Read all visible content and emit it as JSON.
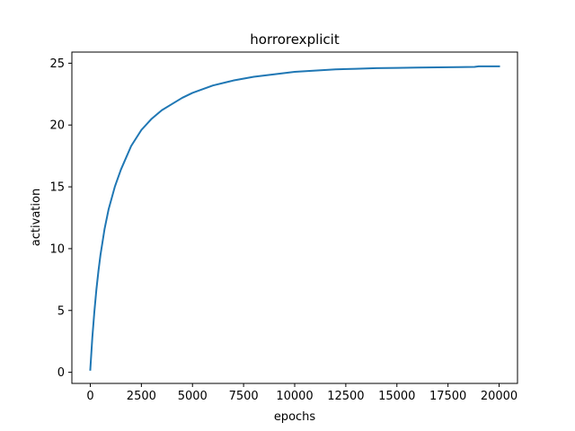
{
  "chart_data": {
    "type": "line",
    "title": "horrorexplicit",
    "xlabel": "epochs",
    "ylabel": "activation",
    "xlim": [
      -900,
      20900
    ],
    "ylim": [
      -0.9,
      25.9
    ],
    "xticks": [
      0,
      2500,
      5000,
      7500,
      10000,
      12500,
      15000,
      17500,
      20000
    ],
    "xtick_labels": [
      "0",
      "2500",
      "5000",
      "7500",
      "10000",
      "12500",
      "15000",
      "17500",
      "20000"
    ],
    "yticks": [
      0,
      5,
      10,
      15,
      20,
      25
    ],
    "ytick_labels": [
      "0",
      "5",
      "10",
      "15",
      "20",
      "25"
    ],
    "grid": false,
    "legend": "none",
    "series": [
      {
        "color": "#1f77b4",
        "x": [
          0,
          100,
          200,
          300,
          400,
          500,
          700,
          900,
          1200,
          1500,
          2000,
          2500,
          3000,
          3500,
          4000,
          4500,
          5000,
          5500,
          6000,
          7000,
          8000,
          9000,
          10000,
          11000,
          12000,
          13000,
          14000,
          15000,
          16000,
          17000,
          18000,
          18800,
          19000,
          20000
        ],
        "y": [
          0.2,
          2.8,
          4.9,
          6.7,
          8.2,
          9.5,
          11.6,
          13.2,
          15.0,
          16.4,
          18.3,
          19.6,
          20.5,
          21.2,
          21.7,
          22.2,
          22.6,
          22.9,
          23.2,
          23.6,
          23.9,
          24.1,
          24.3,
          24.4,
          24.5,
          24.55,
          24.6,
          24.62,
          24.65,
          24.67,
          24.68,
          24.7,
          24.75,
          24.75
        ]
      }
    ]
  }
}
